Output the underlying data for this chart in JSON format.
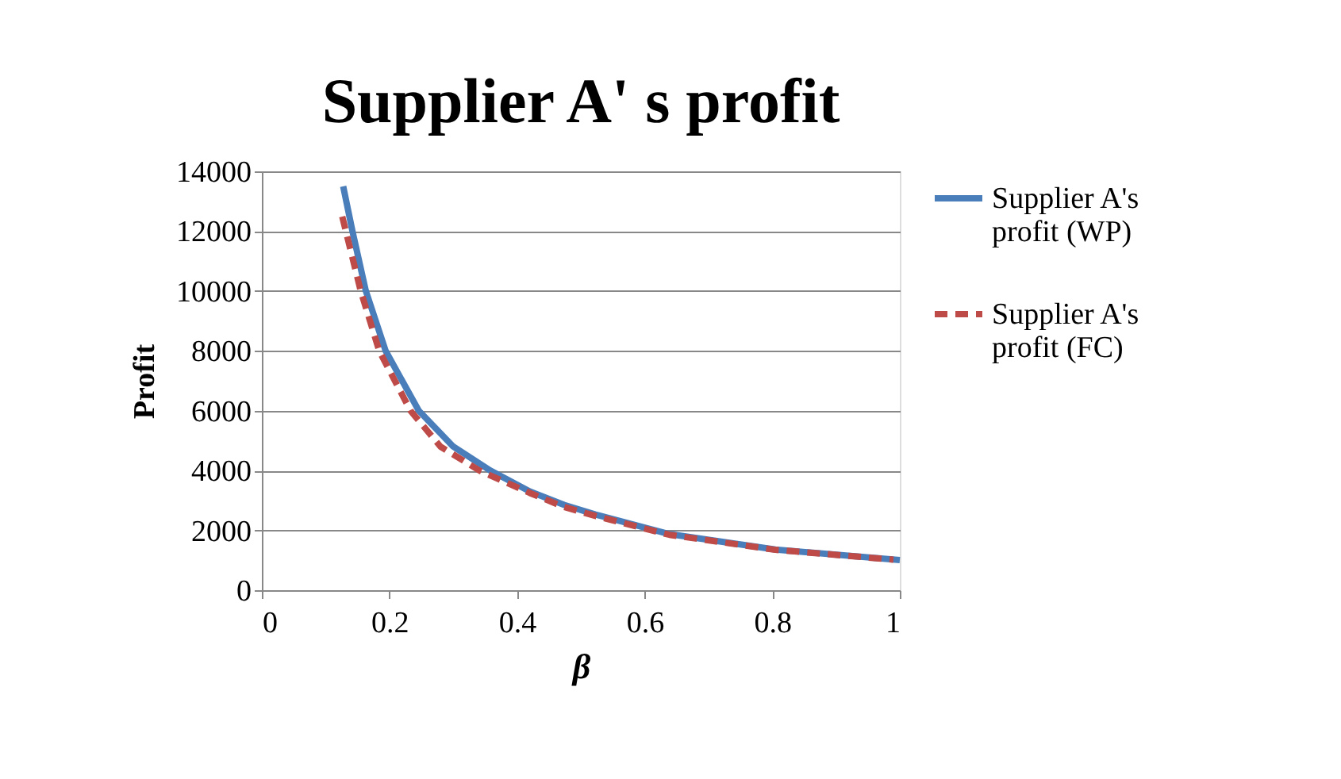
{
  "chart_data": {
    "type": "line",
    "title": "Supplier A' s profit",
    "xlabel": "β",
    "ylabel": "Profit",
    "xlim": [
      0,
      1
    ],
    "xticks": [
      0,
      0.2,
      0.4,
      0.6,
      0.8,
      1
    ],
    "ylim": [
      0,
      14000
    ],
    "yticks": [
      0,
      2000,
      4000,
      6000,
      8000,
      10000,
      12000,
      14000
    ],
    "grid": "y",
    "legend": "right",
    "marker": "none",
    "series": [
      {
        "name": "Supplier A's profit (WP)",
        "color": "#4a7ebb",
        "line_style": "solid",
        "x": [
          0.1275,
          0.142,
          0.163,
          0.194,
          0.246,
          0.3,
          0.358,
          0.42,
          0.474,
          0.523,
          0.639,
          0.805,
          1.0
        ],
        "values": [
          13500,
          12000,
          10000,
          8000,
          6000,
          4800,
          4000,
          3300,
          2850,
          2530,
          1875,
          1360,
          1005
        ]
      },
      {
        "name": "Supplier A's profit (FC)",
        "color": "#be4b48",
        "line_style": "dashed",
        "x": [
          0.126,
          0.155,
          0.184,
          0.233,
          0.28,
          0.341,
          0.42,
          0.474,
          0.523,
          0.639,
          0.805,
          0.99
        ],
        "values": [
          12490,
          10000,
          8000,
          6000,
          4800,
          4000,
          3250,
          2780,
          2480,
          1850,
          1350,
          1020
        ]
      }
    ]
  }
}
